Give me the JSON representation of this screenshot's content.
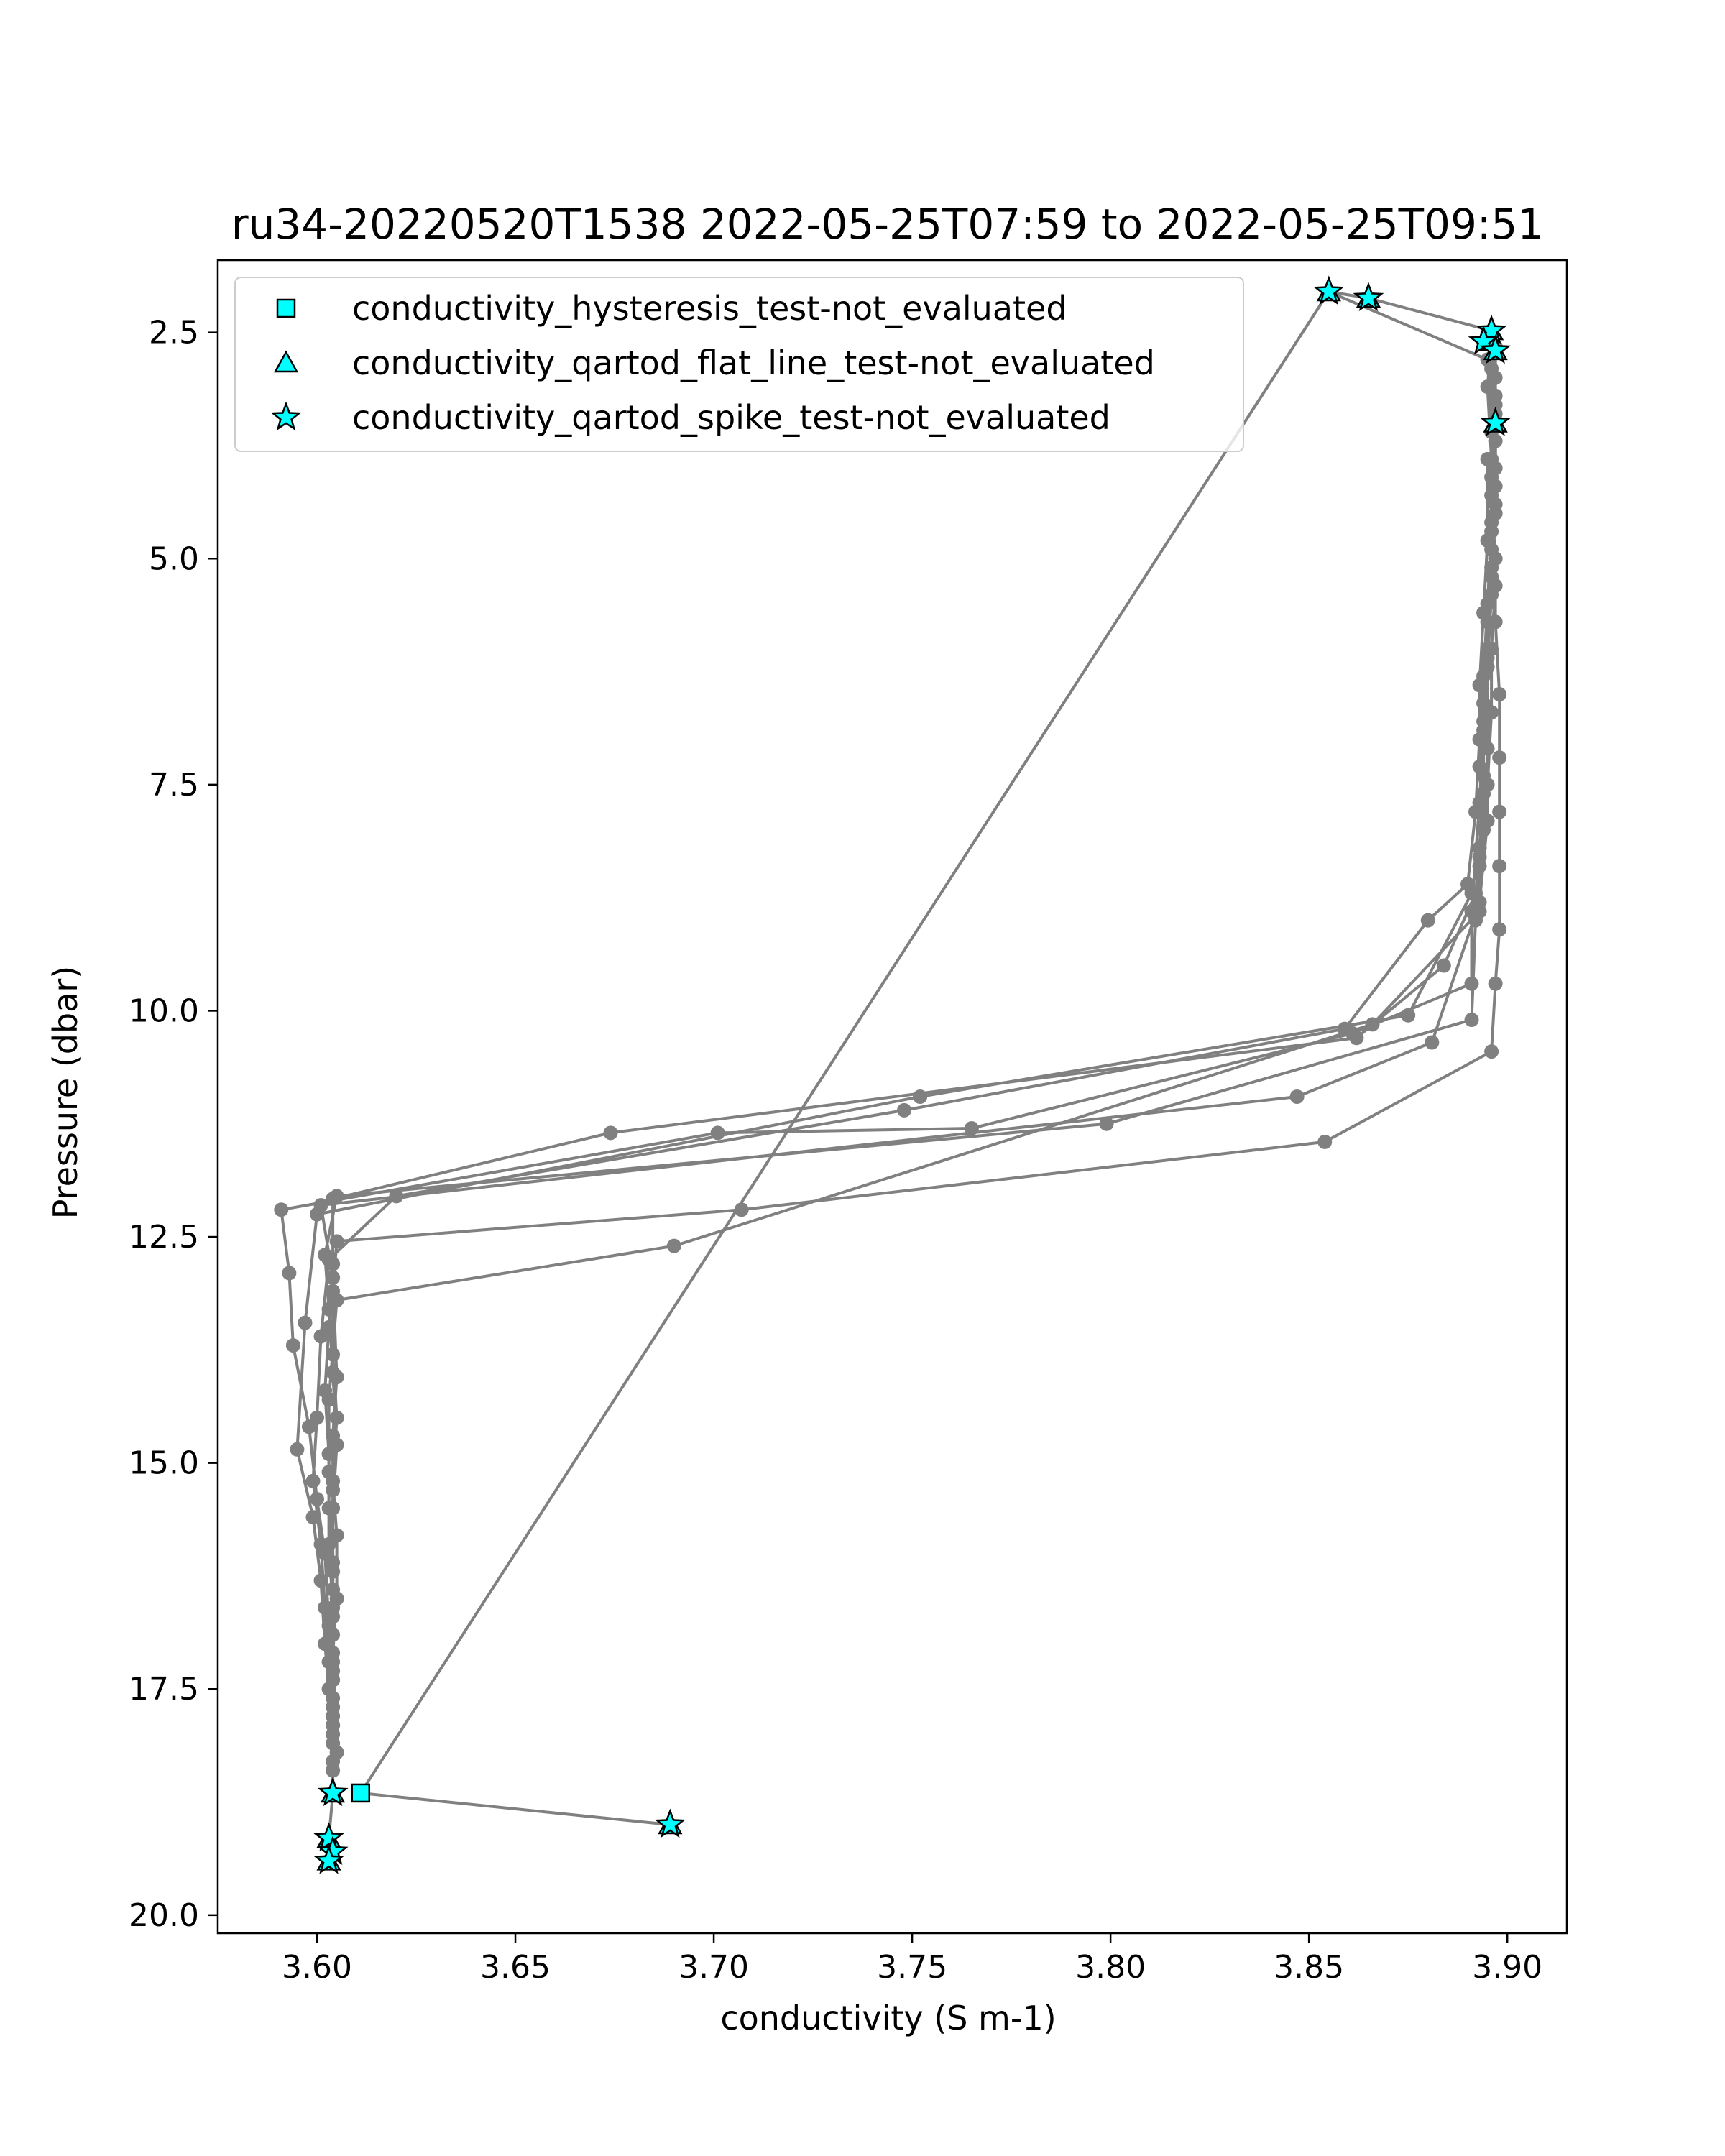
{
  "chart_data": {
    "type": "line",
    "title": "ru34-20220520T1538 2022-05-25T07:59 to 2022-05-25T09:51",
    "xlabel": "conductivity (S m-1)",
    "ylabel": "Pressure (dbar)",
    "xlim": [
      3.575,
      3.915
    ],
    "ylim": [
      20.2,
      1.7
    ],
    "y_inverted": true,
    "xticks": [
      3.6,
      3.65,
      3.7,
      3.75,
      3.8,
      3.85,
      3.9
    ],
    "xtick_labels": [
      "3.60",
      "3.65",
      "3.70",
      "3.75",
      "3.80",
      "3.85",
      "3.90"
    ],
    "yticks": [
      2.5,
      5.0,
      7.5,
      10.0,
      12.5,
      15.0,
      17.5,
      20.0
    ],
    "ytick_labels": [
      "2.5",
      "5.0",
      "7.5",
      "10.0",
      "12.5",
      "15.0",
      "17.5",
      "20.0"
    ],
    "grid": false,
    "legend_placement": "upper-left",
    "line_color": "#808080",
    "flag_color": "#00ffff",
    "series": [
      {
        "style": "line-with-markers",
        "points": [
          [
            3.689,
            19.0
          ],
          [
            3.611,
            18.65
          ],
          [
            3.855,
            2.05
          ],
          [
            3.865,
            2.12
          ],
          [
            3.896,
            2.48
          ],
          [
            3.897,
            2.65
          ],
          [
            3.897,
            3.0
          ],
          [
            3.897,
            3.4
          ],
          [
            3.897,
            4.0
          ],
          [
            3.896,
            4.6
          ],
          [
            3.897,
            5.3
          ],
          [
            3.896,
            6.0
          ],
          [
            3.896,
            6.7
          ],
          [
            3.895,
            7.5
          ],
          [
            3.893,
            8.3
          ],
          [
            3.892,
            8.7
          ],
          [
            3.884,
            9.5
          ],
          [
            3.862,
            10.3
          ],
          [
            3.674,
            11.35
          ],
          [
            3.604,
            12.08
          ],
          [
            3.604,
            12.8
          ],
          [
            3.603,
            13.5
          ],
          [
            3.602,
            14.2
          ],
          [
            3.603,
            14.9
          ],
          [
            3.603,
            15.5
          ],
          [
            3.604,
            16.1
          ],
          [
            3.604,
            16.7
          ],
          [
            3.604,
            17.3
          ],
          [
            3.604,
            17.9
          ],
          [
            3.604,
            18.4
          ],
          [
            3.604,
            18.65
          ],
          [
            3.603,
            19.15
          ],
          [
            3.604,
            19.3
          ],
          [
            3.603,
            19.4
          ]
        ]
      },
      {
        "style": "line-with-markers",
        "points": [
          [
            3.855,
            2.05
          ],
          [
            3.895,
            2.8
          ],
          [
            3.896,
            3.6
          ],
          [
            3.896,
            4.3
          ],
          [
            3.897,
            5.0
          ],
          [
            3.897,
            5.7
          ],
          [
            3.898,
            6.5
          ],
          [
            3.898,
            7.2
          ],
          [
            3.898,
            7.8
          ],
          [
            3.898,
            8.4
          ],
          [
            3.898,
            9.1
          ],
          [
            3.897,
            9.7
          ],
          [
            3.896,
            10.45
          ],
          [
            3.854,
            11.45
          ],
          [
            3.707,
            12.2
          ],
          [
            3.605,
            12.55
          ],
          [
            3.604,
            13.1
          ],
          [
            3.604,
            13.8
          ],
          [
            3.605,
            14.5
          ],
          [
            3.604,
            15.2
          ],
          [
            3.605,
            15.8
          ],
          [
            3.605,
            16.5
          ],
          [
            3.604,
            17.1
          ],
          [
            3.604,
            17.7
          ],
          [
            3.604,
            18.3
          ]
        ]
      },
      {
        "style": "line-with-markers",
        "points": [
          [
            3.896,
            2.6
          ],
          [
            3.895,
            3.1
          ],
          [
            3.896,
            3.9
          ],
          [
            3.896,
            4.7
          ],
          [
            3.895,
            5.5
          ],
          [
            3.894,
            6.3
          ],
          [
            3.893,
            7.0
          ],
          [
            3.892,
            7.8
          ],
          [
            3.89,
            8.6
          ],
          [
            3.88,
            9.0
          ],
          [
            3.859,
            10.2
          ],
          [
            3.748,
            11.1
          ],
          [
            3.62,
            12.05
          ],
          [
            3.603,
            12.75
          ],
          [
            3.601,
            13.6
          ],
          [
            3.6,
            14.5
          ],
          [
            3.599,
            15.2
          ],
          [
            3.601,
            15.9
          ],
          [
            3.602,
            16.6
          ],
          [
            3.603,
            17.2
          ],
          [
            3.604,
            17.8
          ],
          [
            3.605,
            18.2
          ]
        ]
      },
      {
        "style": "line-with-markers",
        "points": [
          [
            3.897,
            2.7
          ],
          [
            3.897,
            3.3
          ],
          [
            3.896,
            4.1
          ],
          [
            3.896,
            4.9
          ],
          [
            3.895,
            5.7
          ],
          [
            3.894,
            6.6
          ],
          [
            3.894,
            7.4
          ],
          [
            3.893,
            8.2
          ],
          [
            3.891,
            8.7
          ],
          [
            3.875,
            10.05
          ],
          [
            3.752,
            10.95
          ],
          [
            3.6,
            12.25
          ],
          [
            3.597,
            13.45
          ],
          [
            3.595,
            14.85
          ],
          [
            3.599,
            15.6
          ],
          [
            3.601,
            16.3
          ],
          [
            3.602,
            17.0
          ],
          [
            3.603,
            17.5
          ],
          [
            3.604,
            18.1
          ]
        ]
      },
      {
        "style": "line-with-markers",
        "points": [
          [
            3.896,
            2.9
          ],
          [
            3.897,
            3.7
          ],
          [
            3.897,
            4.5
          ],
          [
            3.896,
            5.2
          ],
          [
            3.895,
            6.1
          ],
          [
            3.894,
            6.9
          ],
          [
            3.893,
            7.7
          ],
          [
            3.891,
            8.9
          ],
          [
            3.891,
            9.7
          ],
          [
            3.861,
            10.25
          ],
          [
            3.765,
            11.3
          ],
          [
            3.701,
            11.35
          ],
          [
            3.591,
            12.2
          ],
          [
            3.593,
            12.9
          ],
          [
            3.594,
            13.7
          ],
          [
            3.598,
            14.6
          ],
          [
            3.6,
            15.4
          ],
          [
            3.602,
            16.0
          ],
          [
            3.603,
            16.8
          ],
          [
            3.604,
            17.6
          ]
        ]
      },
      {
        "style": "line-with-markers",
        "points": [
          [
            3.897,
            3.2
          ],
          [
            3.897,
            4.2
          ],
          [
            3.896,
            5.1
          ],
          [
            3.895,
            6.0
          ],
          [
            3.894,
            6.8
          ],
          [
            3.894,
            7.6
          ],
          [
            3.893,
            8.4
          ],
          [
            3.892,
            9.0
          ],
          [
            3.891,
            10.1
          ],
          [
            3.799,
            11.25
          ],
          [
            3.605,
            12.05
          ],
          [
            3.602,
            12.7
          ],
          [
            3.603,
            13.3
          ],
          [
            3.604,
            14.0
          ],
          [
            3.605,
            14.8
          ],
          [
            3.604,
            15.5
          ],
          [
            3.604,
            16.2
          ],
          [
            3.604,
            16.9
          ],
          [
            3.604,
            17.4
          ],
          [
            3.604,
            18.0
          ]
        ]
      },
      {
        "style": "line-with-markers",
        "points": [
          [
            3.897,
            3.5
          ],
          [
            3.897,
            4.4
          ],
          [
            3.896,
            5.4
          ],
          [
            3.895,
            6.2
          ],
          [
            3.895,
            7.1
          ],
          [
            3.895,
            7.9
          ],
          [
            3.893,
            8.8
          ],
          [
            3.881,
            10.35
          ],
          [
            3.847,
            10.95
          ],
          [
            3.601,
            12.15
          ],
          [
            3.604,
            12.95
          ],
          [
            3.605,
            14.05
          ],
          [
            3.604,
            14.7
          ],
          [
            3.604,
            15.3
          ],
          [
            3.604,
            16.4
          ],
          [
            3.604,
            17.2
          ],
          [
            3.604,
            17.9
          ]
        ]
      },
      {
        "style": "line-with-markers",
        "points": [
          [
            3.895,
            3.9
          ],
          [
            3.895,
            4.8
          ],
          [
            3.894,
            5.6
          ],
          [
            3.893,
            6.4
          ],
          [
            3.893,
            7.3
          ],
          [
            3.894,
            8.0
          ],
          [
            3.893,
            8.9
          ],
          [
            3.866,
            10.15
          ],
          [
            3.69,
            12.6
          ],
          [
            3.605,
            13.2
          ],
          [
            3.603,
            14.3
          ],
          [
            3.603,
            15.1
          ],
          [
            3.603,
            15.9
          ],
          [
            3.604,
            16.6
          ],
          [
            3.604,
            17.4
          ]
        ]
      }
    ],
    "flags": [
      {
        "name": "conductivity_hysteresis_test-not_evaluated",
        "marker": "square",
        "points": [
          [
            3.611,
            18.65
          ]
        ]
      },
      {
        "name": "conductivity_qartod_flat_line_test-not_evaluated",
        "marker": "triangle",
        "points": [
          [
            3.855,
            2.05
          ],
          [
            3.865,
            2.12
          ],
          [
            3.896,
            2.48
          ],
          [
            3.895,
            2.6
          ],
          [
            3.897,
            2.7
          ],
          [
            3.897,
            3.5
          ],
          [
            3.689,
            19.0
          ],
          [
            3.604,
            18.65
          ],
          [
            3.603,
            19.15
          ],
          [
            3.603,
            19.4
          ]
        ]
      },
      {
        "name": "conductivity_qartod_spike_test-not_evaluated",
        "marker": "star",
        "points": [
          [
            3.855,
            2.05
          ],
          [
            3.865,
            2.12
          ],
          [
            3.896,
            2.48
          ],
          [
            3.894,
            2.6
          ],
          [
            3.897,
            2.7
          ],
          [
            3.897,
            3.5
          ],
          [
            3.689,
            19.0
          ],
          [
            3.604,
            18.65
          ],
          [
            3.603,
            19.15
          ],
          [
            3.604,
            19.3
          ],
          [
            3.603,
            19.4
          ]
        ]
      }
    ]
  }
}
